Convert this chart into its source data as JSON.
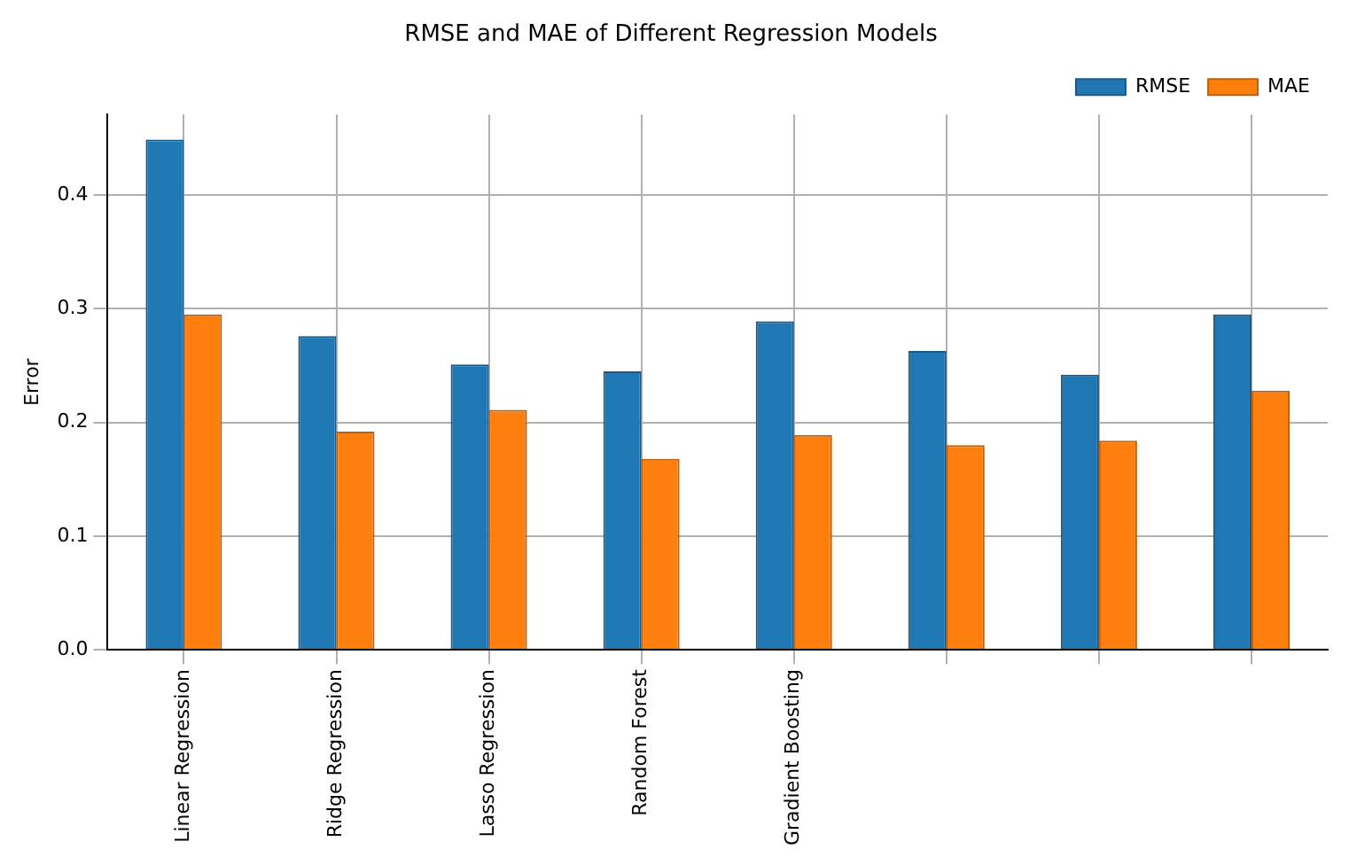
{
  "chart_data": {
    "type": "bar",
    "title": "RMSE and MAE of Different Regression Models",
    "ylabel": "Error",
    "categories": [
      "Linear Regression",
      "Ridge Regression",
      "Lasso Regression",
      "Random Forest",
      "Gradient Boosting",
      null,
      null,
      null
    ],
    "series": [
      {
        "name": "RMSE",
        "color": "#1f77b4",
        "values": [
          0.449,
          0.276,
          0.251,
          0.245,
          0.289,
          0.263,
          0.242,
          0.295
        ]
      },
      {
        "name": "MAE",
        "color": "#ff7f0e",
        "values": [
          0.295,
          0.192,
          0.211,
          0.168,
          0.189,
          0.18,
          0.184,
          0.228
        ]
      }
    ],
    "ylim": [
      0,
      0.471
    ],
    "yticks": [
      {
        "value": 0,
        "label": "0.0"
      },
      {
        "value": 0.1,
        "label": "0.1"
      },
      {
        "value": 0.2,
        "label": "0.2"
      },
      {
        "value": 0.3,
        "label": "0.3"
      },
      {
        "value": 0.4,
        "label": "0.4"
      }
    ],
    "grid": true,
    "legend": "top right"
  }
}
